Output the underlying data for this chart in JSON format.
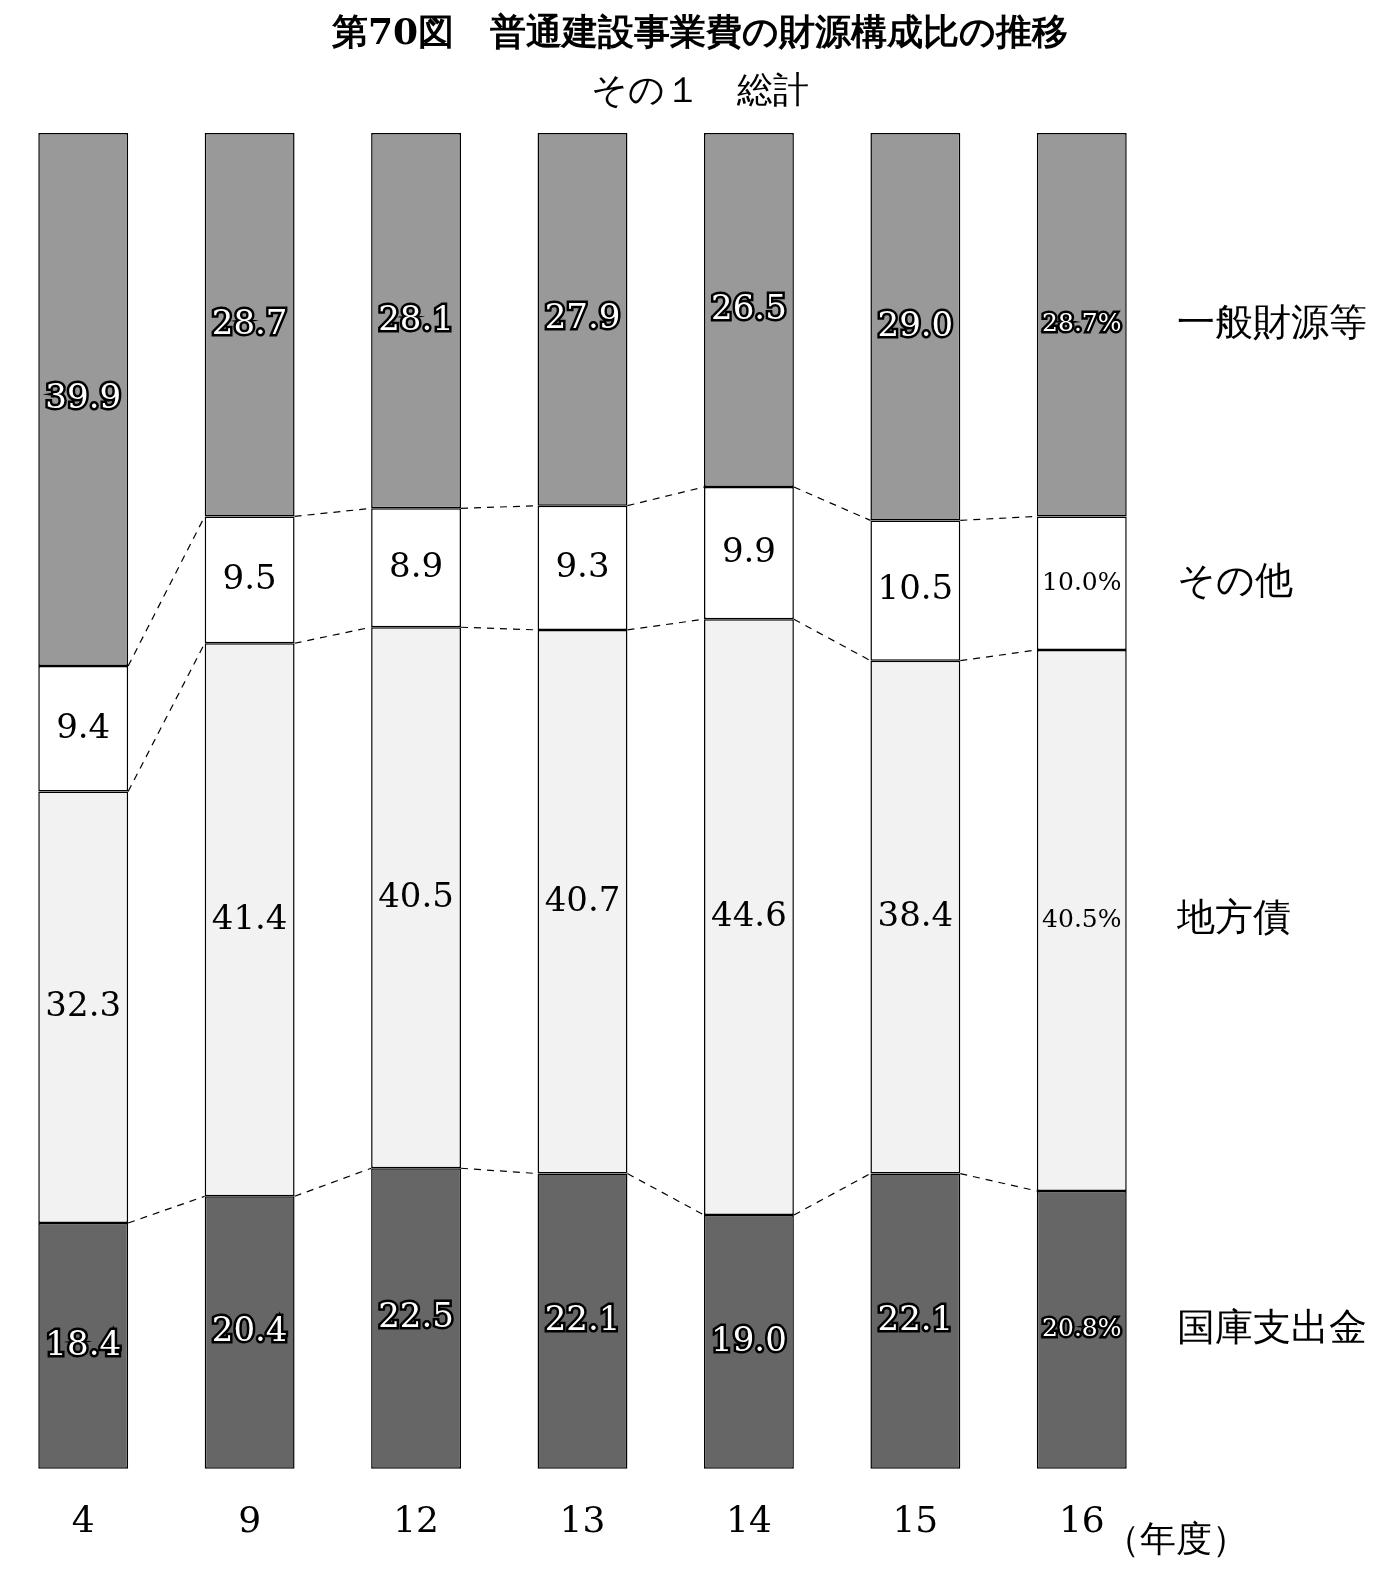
{
  "chart_data": {
    "type": "bar",
    "stacked": true,
    "title": "第70図　普通建設事業費の財源構成比の推移",
    "subtitle": "その１　総計",
    "xlabel": "（年度）",
    "categories": [
      "4",
      "9",
      "12",
      "13",
      "14",
      "15",
      "16"
    ],
    "series": [
      {
        "name": "国庫支出金",
        "color": "#666666",
        "values": [
          18.4,
          20.4,
          22.5,
          22.1,
          19.0,
          22.1,
          20.8
        ],
        "value_labels": [
          "18.4",
          "20.4",
          "22.5",
          "22.1",
          "19.0",
          "22.1",
          "20.8%"
        ]
      },
      {
        "name": "地方債",
        "color": "#f2f2f2",
        "values": [
          32.3,
          41.4,
          40.5,
          40.7,
          44.6,
          38.4,
          40.5
        ],
        "value_labels": [
          "32.3",
          "41.4",
          "40.5",
          "40.7",
          "44.6",
          "38.4",
          "40.5%"
        ]
      },
      {
        "name": "その他",
        "color": "#ffffff",
        "values": [
          9.4,
          9.5,
          8.9,
          9.3,
          9.9,
          10.5,
          10.0
        ],
        "value_labels": [
          "9.4",
          "9.5",
          "8.9",
          "9.3",
          "9.9",
          "10.5",
          "10.0%"
        ]
      },
      {
        "name": "一般財源等",
        "color": "#999999",
        "values": [
          39.9,
          28.7,
          28.1,
          27.9,
          26.5,
          29.0,
          28.7
        ],
        "value_labels": [
          "39.9",
          "28.7",
          "28.1",
          "27.9",
          "26.5",
          "29.0",
          "28.7%"
        ]
      }
    ]
  }
}
